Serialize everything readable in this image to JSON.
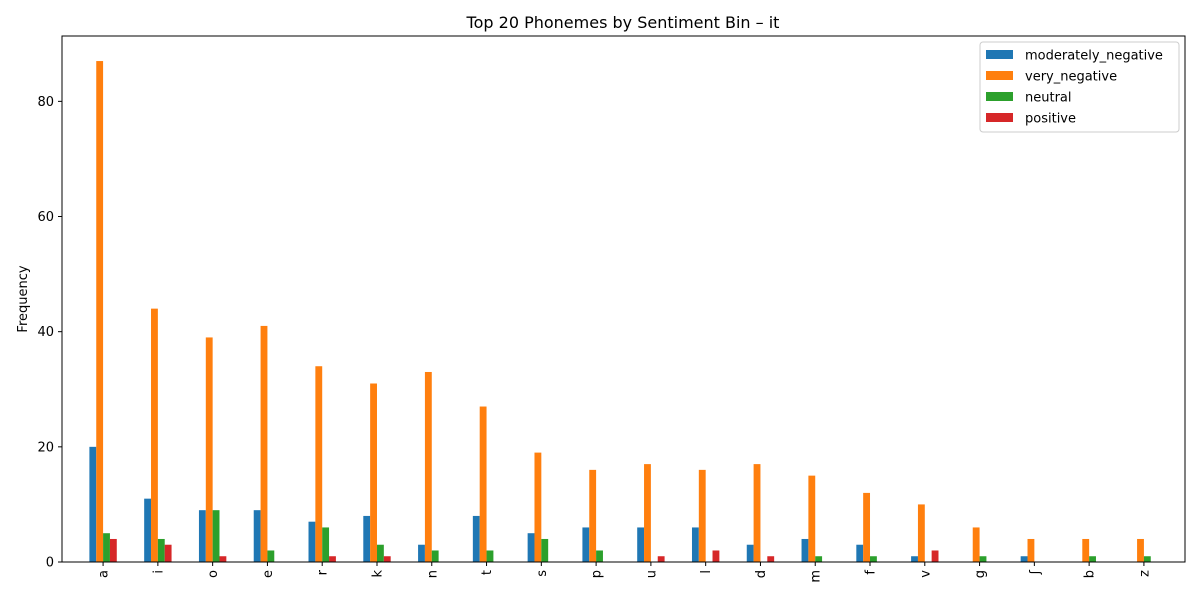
{
  "chart_data": {
    "type": "bar",
    "title": "Top 20 Phonemes by Sentiment Bin – it",
    "xlabel": "",
    "ylabel": "Frequency",
    "ylim": [
      0,
      91.35
    ],
    "yticks": [
      0,
      20,
      40,
      60,
      80
    ],
    "categories": [
      "a",
      "i",
      "o",
      "e",
      "r",
      "k",
      "n",
      "t",
      "s",
      "p",
      "u",
      "l",
      "d",
      "m",
      "f",
      "v",
      "g",
      "ʃ",
      "b",
      "z"
    ],
    "series": [
      {
        "name": "moderately_negative",
        "color": "#1f77b4",
        "values": [
          20,
          11,
          9,
          9,
          7,
          8,
          3,
          8,
          5,
          6,
          6,
          6,
          3,
          4,
          3,
          1,
          0,
          1,
          0,
          0
        ]
      },
      {
        "name": "very_negative",
        "color": "#ff7f0e",
        "values": [
          87,
          44,
          39,
          41,
          34,
          31,
          33,
          27,
          19,
          16,
          17,
          16,
          17,
          15,
          12,
          10,
          6,
          4,
          4,
          4
        ]
      },
      {
        "name": "neutral",
        "color": "#2ca02c",
        "values": [
          5,
          4,
          9,
          2,
          6,
          3,
          2,
          2,
          4,
          2,
          0,
          0,
          0,
          1,
          1,
          0,
          1,
          0,
          1,
          1
        ]
      },
      {
        "name": "positive",
        "color": "#d62728",
        "values": [
          4,
          3,
          1,
          0,
          1,
          1,
          0,
          0,
          0,
          0,
          1,
          2,
          1,
          0,
          0,
          2,
          0,
          0,
          0,
          0
        ]
      }
    ],
    "grid": false,
    "legend_position": "top-right"
  }
}
